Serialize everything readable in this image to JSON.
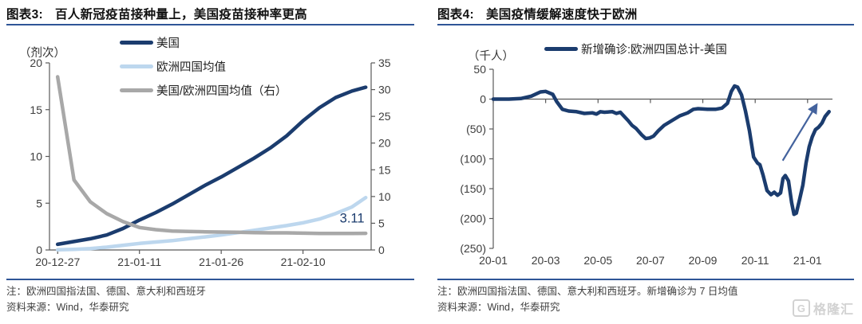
{
  "figures": [
    {
      "label": "图表3:",
      "title": "百人新冠疫苗接种量上，美国疫苗接种率更高",
      "unit": "（剂次）",
      "legend": [
        {
          "label": "美国",
          "color": "#1b3c6e"
        },
        {
          "label": "欧洲四国均值",
          "color": "#bdd7ee"
        },
        {
          "label": "美国/欧洲四国均值（右）",
          "color": "#a8a8a8"
        }
      ],
      "note": "注：欧洲四国指法国、德国、意大利和西班牙",
      "source": "资料来源：Wind，华泰研究"
    },
    {
      "label": "图表4:",
      "title": "美国疫情缓解速度快于欧洲",
      "unit": "（千人）",
      "legend": [
        {
          "label": "新增确诊:欧洲四国总计-美国",
          "color": "#1b3c6e"
        }
      ],
      "note": "注：欧洲四国指法国、德国、意大利和西班牙。新增确诊为 7 日均值",
      "source": "资料来源：Wind，华泰研究"
    }
  ],
  "chart_data": [
    {
      "type": "line",
      "title": "百人新冠疫苗接种量上，美国疫苗接种率更高",
      "xlabel": "date",
      "ylabel": "剂次 per 100 people",
      "x_axis": {
        "min": -1.5,
        "max": 57.5,
        "line_at": 0,
        "ticks": [
          {
            "v": 0,
            "label": "20-12-27"
          },
          {
            "v": 15,
            "label": "21-01-11"
          },
          {
            "v": 30,
            "label": "21-01-26"
          },
          {
            "v": 45,
            "label": "21-02-10"
          }
        ]
      },
      "left_axis": {
        "min": 0,
        "max": 20,
        "ticks": [
          {
            "v": 0,
            "label": "0"
          },
          {
            "v": 5,
            "label": "5"
          },
          {
            "v": 10,
            "label": "10"
          },
          {
            "v": 15,
            "label": "15"
          },
          {
            "v": 20,
            "label": "20"
          }
        ]
      },
      "right_axis": {
        "min": 0,
        "max": 35,
        "ticks": [
          {
            "v": 0,
            "label": "0"
          },
          {
            "v": 5,
            "label": "5"
          },
          {
            "v": 10,
            "label": "10"
          },
          {
            "v": 15,
            "label": "15"
          },
          {
            "v": 20,
            "label": "20"
          },
          {
            "v": 25,
            "label": "25"
          },
          {
            "v": 30,
            "label": "30"
          },
          {
            "v": 35,
            "label": "35"
          }
        ]
      },
      "series": [
        {
          "name": "美国",
          "axis": "left",
          "color": "#1b3c6e",
          "width": 4.5,
          "x": [
            0,
            3,
            6,
            9,
            12,
            15,
            18,
            21,
            24,
            27,
            30,
            33,
            36,
            39,
            42,
            45,
            48,
            51,
            54,
            56.5
          ],
          "y": [
            0.6,
            0.9,
            1.2,
            1.6,
            2.3,
            3.2,
            4.0,
            4.9,
            5.9,
            6.9,
            7.8,
            8.8,
            9.8,
            10.9,
            12.2,
            13.8,
            15.2,
            16.3,
            17.0,
            17.4
          ]
        },
        {
          "name": "欧洲四国均值",
          "axis": "left",
          "color": "#bdd7ee",
          "width": 4.5,
          "x": [
            0,
            3,
            6,
            9,
            12,
            15,
            18,
            21,
            24,
            27,
            30,
            33,
            36,
            39,
            42,
            45,
            48,
            51,
            54,
            56.5
          ],
          "y": [
            0.02,
            0.07,
            0.15,
            0.3,
            0.5,
            0.7,
            0.85,
            1.0,
            1.2,
            1.4,
            1.6,
            1.85,
            2.1,
            2.35,
            2.6,
            2.9,
            3.3,
            3.9,
            4.6,
            5.6
          ]
        },
        {
          "name": "美国/欧洲四国均值（右）",
          "axis": "right",
          "color": "#a8a8a8",
          "width": 4.5,
          "x": [
            0,
            3,
            6,
            9,
            12,
            15,
            18,
            21,
            24,
            27,
            30,
            33,
            36,
            39,
            42,
            45,
            48,
            51,
            54,
            56.5
          ],
          "y": [
            32.4,
            13.1,
            9.0,
            6.8,
            5.3,
            4.2,
            3.8,
            3.55,
            3.45,
            3.4,
            3.35,
            3.3,
            3.25,
            3.2,
            3.2,
            3.15,
            3.1,
            3.1,
            3.1,
            3.11
          ]
        }
      ],
      "annotations": [
        {
          "text": "3.11",
          "x": 54,
          "y": 2.95,
          "size": 16.5,
          "color": "#1b3c6e"
        }
      ]
    },
    {
      "type": "line",
      "title": "美国疫情缓解速度快于欧洲",
      "xlabel": "month",
      "ylabel": "千人",
      "x_axis": {
        "min": 0,
        "max": 12.95,
        "line_at": 0,
        "ticks": [
          {
            "v": 0,
            "label": "20-01"
          },
          {
            "v": 2,
            "label": "20-03"
          },
          {
            "v": 4,
            "label": "20-05"
          },
          {
            "v": 6,
            "label": "20-07"
          },
          {
            "v": 8,
            "label": "20-09"
          },
          {
            "v": 10,
            "label": "20-11"
          },
          {
            "v": 12,
            "label": "21-01"
          }
        ]
      },
      "left_axis": {
        "min": -250,
        "max": 50,
        "ticks": [
          {
            "v": 50,
            "label": "50"
          },
          {
            "v": 0,
            "label": "0"
          },
          {
            "v": -50,
            "label": "(50)"
          },
          {
            "v": -100,
            "label": "(100)"
          },
          {
            "v": -150,
            "label": "(150)"
          },
          {
            "v": -200,
            "label": "(200)"
          },
          {
            "v": -250,
            "label": "(250)"
          }
        ]
      },
      "series": [
        {
          "name": "新增确诊:欧洲四国总计-美国",
          "axis": "left",
          "color": "#1b3c6e",
          "width": 4.5,
          "x": [
            0,
            0.6,
            1.05,
            1.45,
            1.8,
            2.0,
            2.27,
            2.42,
            2.64,
            2.88,
            3.18,
            3.48,
            3.79,
            3.94,
            4.09,
            4.24,
            4.55,
            4.7,
            4.85,
            5.15,
            5.3,
            5.45,
            5.67,
            5.82,
            5.97,
            6.12,
            6.3,
            6.52,
            6.82,
            7.12,
            7.42,
            7.64,
            7.82,
            8.18,
            8.48,
            8.73,
            8.94,
            9.09,
            9.21,
            9.33,
            9.48,
            9.63,
            9.78,
            9.94,
            10.09,
            10.18,
            10.3,
            10.45,
            10.6,
            10.73,
            10.85,
            10.97,
            11.06,
            11.15,
            11.27,
            11.39,
            11.48,
            11.57,
            11.7,
            11.82,
            11.94,
            12.06,
            12.18,
            12.3,
            12.42,
            12.55,
            12.67,
            12.82
          ],
          "y": [
            0,
            0,
            1,
            5,
            12,
            13,
            8,
            -4,
            -17,
            -20,
            -21,
            -24,
            -23,
            -25,
            -21,
            -22,
            -21,
            -24,
            -22,
            -36,
            -44,
            -49,
            -60,
            -66,
            -65,
            -62,
            -53,
            -44,
            -36,
            -28,
            -23,
            -17,
            -16,
            -17,
            -17,
            -15,
            -7,
            13,
            22,
            20,
            7,
            -20,
            -53,
            -97,
            -107,
            -110,
            -127,
            -153,
            -160,
            -156,
            -161,
            -157,
            -133,
            -128,
            -137,
            -173,
            -193,
            -191,
            -167,
            -144,
            -107,
            -80,
            -63,
            -51,
            -47,
            -40,
            -29,
            -21
          ]
        }
      ],
      "arrow": {
        "x1": 11.05,
        "y1": -103,
        "x2": 12.35,
        "y2": -9,
        "color": "#44639e"
      }
    }
  ],
  "watermark": {
    "icon": "G",
    "text": "格隆汇"
  },
  "colors": {
    "header_rule": "#2f5597",
    "axis": "#595959",
    "tick_label": "#3d3d3d",
    "annotation": "#1b3c6e",
    "arrow": "#44639e"
  }
}
